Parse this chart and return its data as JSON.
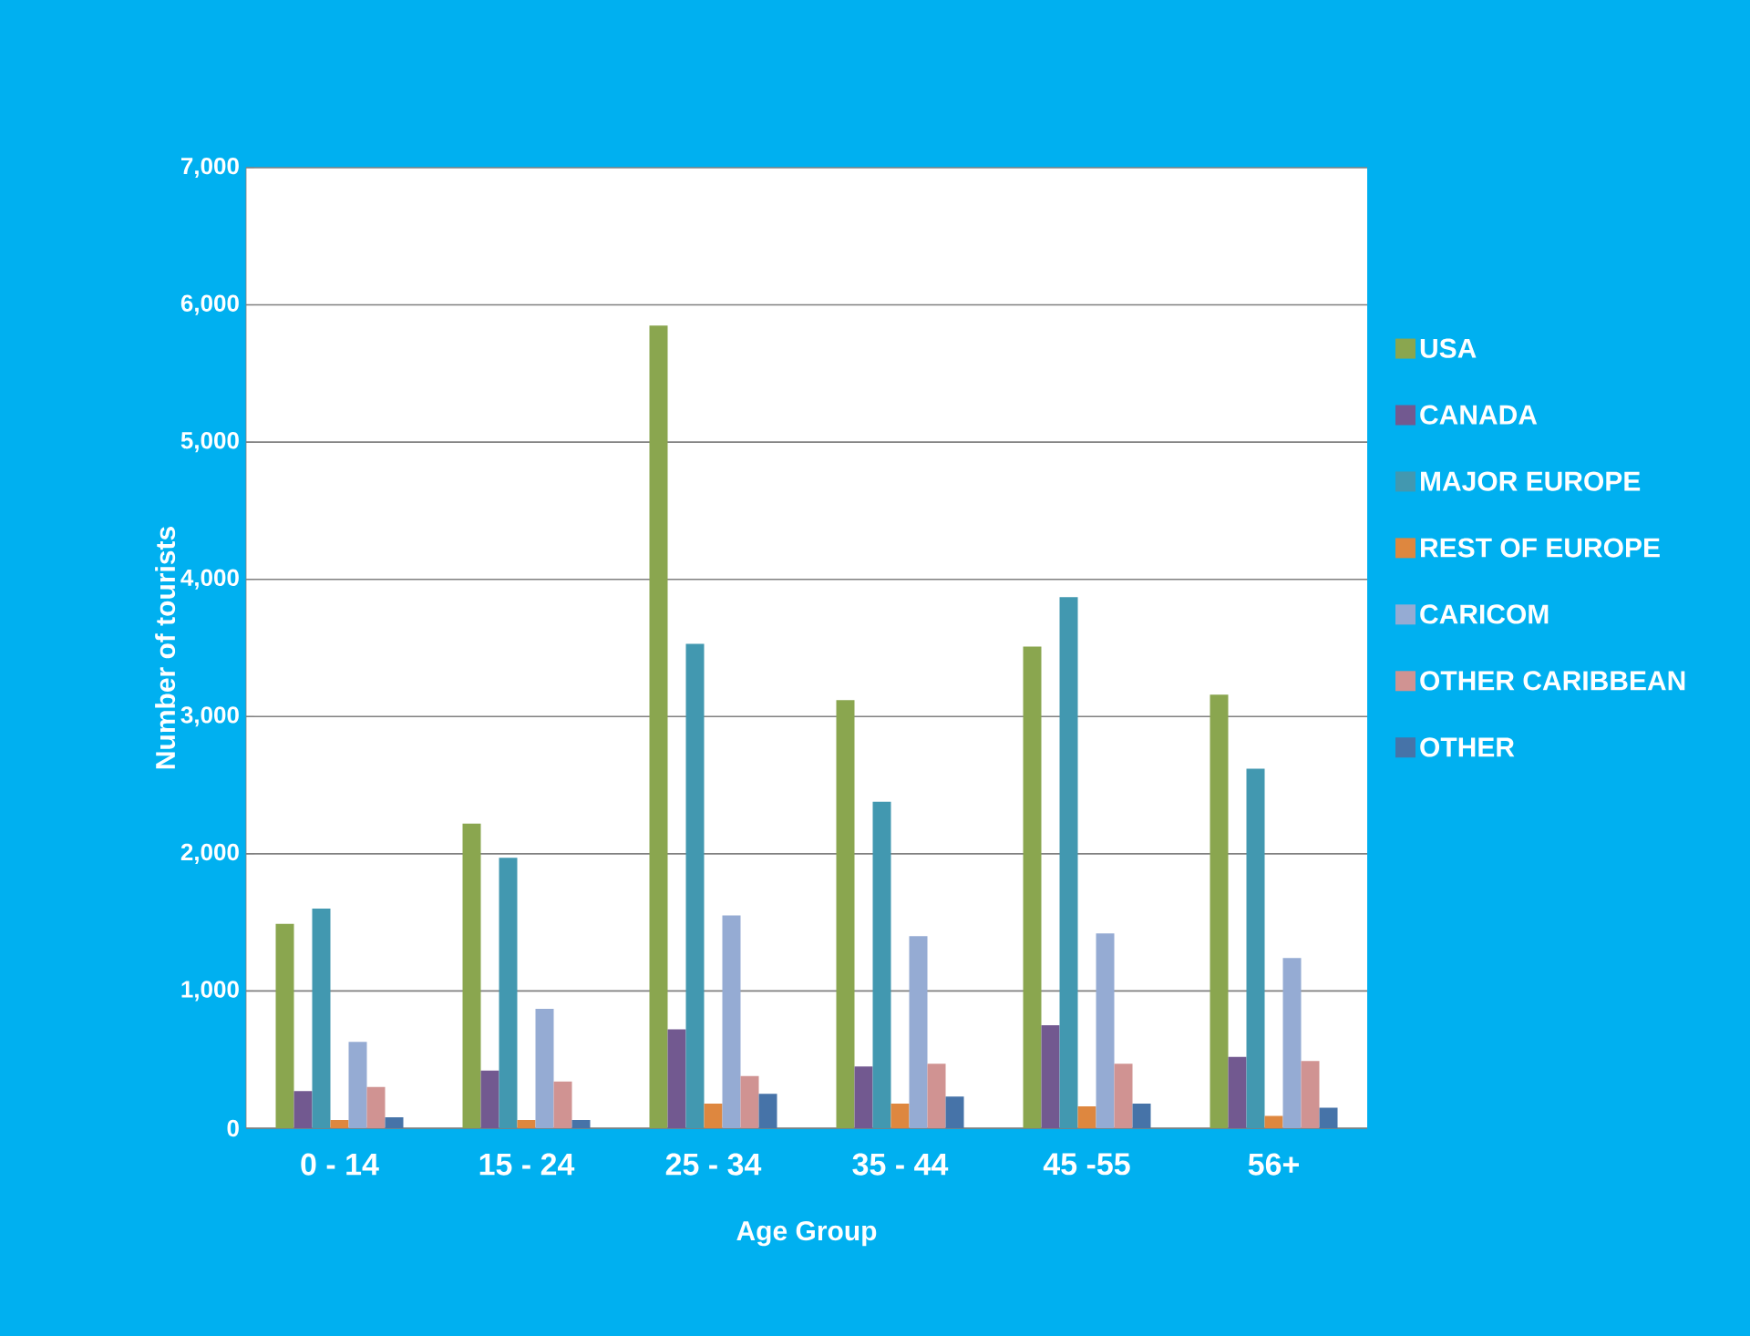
{
  "chart_data": {
    "type": "bar",
    "xlabel": "Age Group",
    "ylabel": "Number of tourists",
    "categories": [
      "0 - 14",
      "15 - 24",
      "25 - 34",
      "35 - 44",
      "45 -55",
      "56+"
    ],
    "series": [
      {
        "name": "USA",
        "color": "#8aa64f",
        "values": [
          1490,
          2220,
          5850,
          3120,
          3510,
          3160
        ]
      },
      {
        "name": "CANADA",
        "color": "#725990",
        "values": [
          270,
          420,
          720,
          450,
          750,
          520
        ]
      },
      {
        "name": "MAJOR EUROPE",
        "color": "#4298b0",
        "values": [
          1600,
          1970,
          3530,
          2380,
          3870,
          2620
        ]
      },
      {
        "name": "REST OF EUROPE",
        "color": "#de873f",
        "values": [
          60,
          60,
          180,
          180,
          160,
          90
        ]
      },
      {
        "name": "CARICOM",
        "color": "#95abd3",
        "values": [
          630,
          870,
          1550,
          1400,
          1420,
          1240
        ]
      },
      {
        "name": "OTHER CARIBBEAN",
        "color": "#d09392",
        "values": [
          300,
          340,
          380,
          470,
          470,
          490
        ]
      },
      {
        "name": "OTHER",
        "color": "#4673a8",
        "values": [
          80,
          60,
          250,
          230,
          180,
          150
        ]
      }
    ],
    "ylim": [
      0,
      7000
    ],
    "yticks": [
      0,
      {
        "value": 1000,
        "label": "1,000"
      },
      {
        "value": 2000,
        "label": "2,000"
      },
      {
        "value": 3000,
        "label": "3,000"
      },
      {
        "value": 4000,
        "label": "4,000"
      },
      {
        "value": 5000,
        "label": "5,000"
      },
      {
        "value": 6000,
        "label": "6,000"
      },
      {
        "value": 7000,
        "label": "7,000"
      }
    ],
    "grid": "y",
    "legend": "right"
  }
}
